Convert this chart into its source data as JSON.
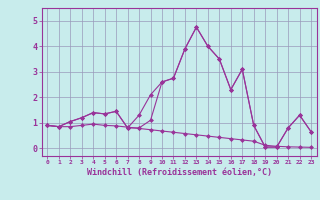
{
  "xlabel": "Windchill (Refroidissement éolien,°C)",
  "background_color": "#c8ecec",
  "line_color": "#993399",
  "grid_color": "#9999bb",
  "x_ticks": [
    0,
    1,
    2,
    3,
    4,
    5,
    6,
    7,
    8,
    9,
    10,
    11,
    12,
    13,
    14,
    15,
    16,
    17,
    18,
    19,
    20,
    21,
    22,
    23
  ],
  "y_ticks": [
    0,
    1,
    2,
    3,
    4,
    5
  ],
  "xlim": [
    -0.5,
    23.5
  ],
  "ylim": [
    -0.3,
    5.5
  ],
  "line1_x": [
    0,
    1,
    2,
    3,
    4,
    5,
    6,
    7,
    8,
    9,
    10,
    11,
    12,
    13,
    14,
    15,
    16,
    17,
    18,
    19,
    20,
    21,
    22,
    23
  ],
  "line1_y": [
    0.9,
    0.85,
    1.05,
    1.2,
    1.4,
    1.35,
    1.45,
    0.8,
    0.8,
    1.1,
    2.6,
    2.75,
    3.9,
    4.75,
    4.0,
    3.5,
    2.3,
    3.1,
    0.9,
    0.05,
    0.05,
    0.8,
    1.3,
    0.65
  ],
  "line2_x": [
    0,
    1,
    2,
    3,
    4,
    5,
    6,
    7,
    8,
    9,
    10,
    11,
    12,
    13,
    14,
    15,
    16,
    17,
    18,
    19,
    20,
    21,
    22,
    23
  ],
  "line2_y": [
    0.9,
    0.85,
    1.05,
    1.2,
    1.4,
    1.35,
    1.45,
    0.8,
    1.3,
    2.1,
    2.6,
    2.75,
    3.9,
    4.75,
    4.0,
    3.5,
    2.3,
    3.1,
    0.9,
    0.05,
    0.05,
    0.8,
    1.3,
    0.65
  ],
  "line3_x": [
    0,
    1,
    2,
    3,
    4,
    5,
    6,
    7,
    8,
    9,
    10,
    11,
    12,
    13,
    14,
    15,
    16,
    17,
    18,
    19,
    20,
    21,
    22,
    23
  ],
  "line3_y": [
    0.9,
    0.85,
    0.85,
    0.9,
    0.95,
    0.9,
    0.88,
    0.83,
    0.78,
    0.73,
    0.68,
    0.63,
    0.58,
    0.53,
    0.48,
    0.43,
    0.38,
    0.33,
    0.28,
    0.12,
    0.08,
    0.06,
    0.05,
    0.04
  ]
}
